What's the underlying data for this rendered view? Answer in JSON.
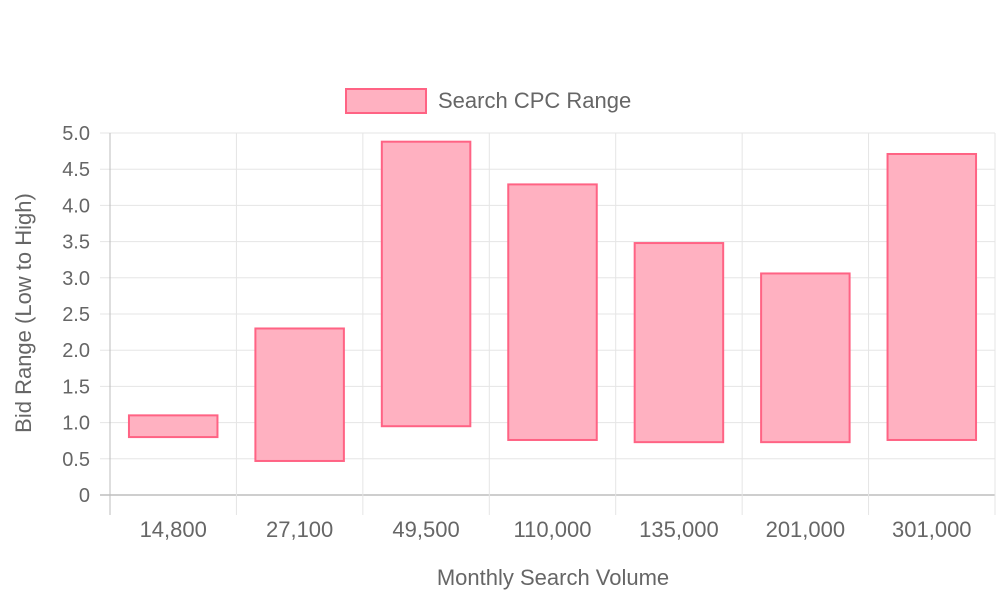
{
  "chart_data": {
    "type": "bar",
    "subtype": "floating-range",
    "legend": {
      "label": "Search CPC Range",
      "placement": "top"
    },
    "xlabel": "Monthly Search Volume",
    "ylabel": "Bid Range (Low to High)",
    "ylim": [
      0,
      5.0
    ],
    "yticks": [
      "0",
      "0.5",
      "1.0",
      "1.5",
      "2.0",
      "2.5",
      "3.0",
      "3.5",
      "4.0",
      "4.5",
      "5.0"
    ],
    "grid": true,
    "categories": [
      "14,800",
      "27,100",
      "49,500",
      "110,000",
      "135,000",
      "201,000",
      "301,000"
    ],
    "series": [
      {
        "name": "Search CPC Range",
        "low": [
          0.8,
          0.47,
          0.95,
          0.76,
          0.73,
          0.73,
          0.76
        ],
        "high": [
          1.1,
          2.3,
          4.88,
          4.29,
          3.48,
          3.06,
          4.71
        ]
      }
    ],
    "colors": {
      "bar_fill": "#ffb1c1",
      "bar_stroke": "#ff6384",
      "grid": "#e5e5e5",
      "axis": "#bdbdbd",
      "text": "#666666"
    }
  }
}
